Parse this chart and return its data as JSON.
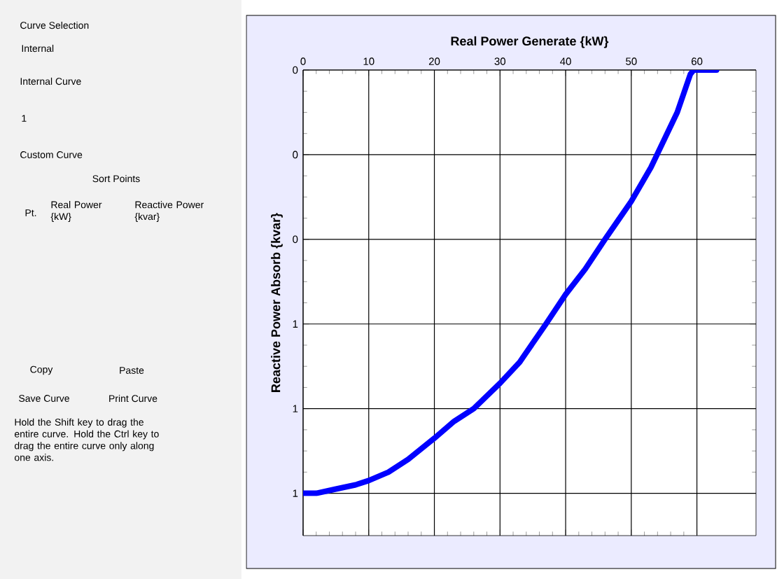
{
  "chart_data": {
    "type": "line",
    "xlabel": "Real Power Generate {kW}",
    "ylabel": "Reactive Power Absorb {kvar}",
    "x": [
      0,
      2,
      5,
      8,
      10,
      13,
      16,
      20,
      23,
      26,
      30,
      33,
      37,
      40,
      43,
      46,
      48,
      50,
      53,
      55,
      57,
      59,
      59.5,
      63
    ],
    "series": [
      {
        "color": "#0000ff",
        "values": [
          1.0,
          1.0,
          0.99,
          0.98,
          0.97,
          0.95,
          0.92,
          0.87,
          0.83,
          0.8,
          0.74,
          0.69,
          0.6,
          0.53,
          0.47,
          0.4,
          0.355,
          0.31,
          0.23,
          0.165,
          0.1,
          0.01,
          0,
          0
        ]
      }
    ],
    "xlim": [
      0,
      69
    ],
    "xticks": [
      0,
      10,
      20,
      30,
      40,
      50,
      60
    ],
    "ylim": [
      1.1,
      0
    ],
    "yticks": [
      0,
      {
        "value": 0.2,
        "label": "0"
      },
      {
        "value": 0.4,
        "label": "0"
      },
      {
        "value": 0.6,
        "label": "1"
      },
      {
        "value": 0.8,
        "label": "1"
      },
      1
    ],
    "grid": true,
    "marker": "none",
    "line_style": "solid",
    "annotations": [
      "Curve Selection",
      "Internal",
      "Internal Curve",
      "1",
      "Custom Curve",
      "Sort Points",
      "Pt.",
      "Real Power {kW}",
      "Reactive Power {kvar}",
      "Copy",
      "Paste",
      "Save Curve",
      "Print Curve",
      "Hold the Shift key to drag the entire curve.  Hold the Ctrl key to drag the entire curve only along one axis."
    ]
  }
}
